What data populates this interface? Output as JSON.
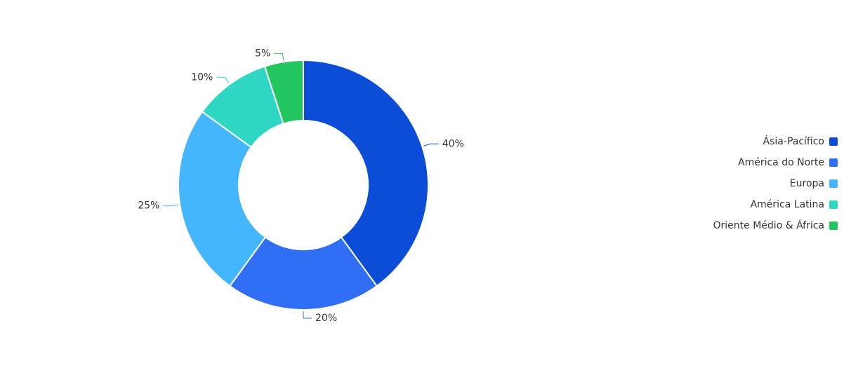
{
  "chart_data": {
    "type": "donut",
    "categories": [
      "Ásia-Pacífico",
      "América do Norte",
      "Europa",
      "América Latina",
      "Oriente Médio & África"
    ],
    "values": [
      40,
      20,
      25,
      10,
      5
    ],
    "value_labels": [
      "40%",
      "20%",
      "25%",
      "10%",
      "5%"
    ],
    "colors": [
      "#0b4dd6",
      "#2f6ef5",
      "#44b6fd",
      "#2ed6c4",
      "#22c55e"
    ],
    "legend": "right"
  }
}
